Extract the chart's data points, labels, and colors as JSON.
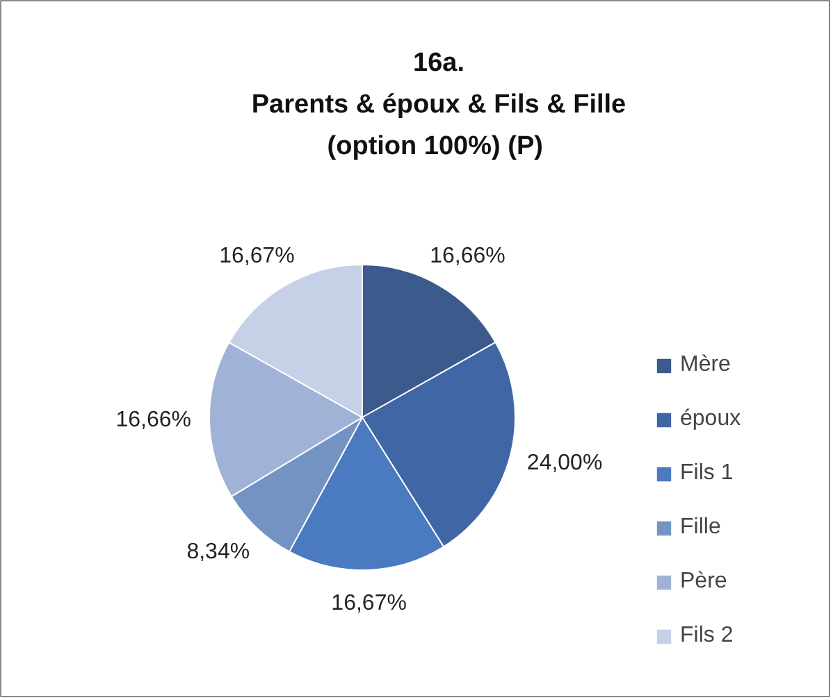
{
  "chart_data": {
    "type": "pie",
    "title": "16a.\nParents & époux & Fils & Fille\n(option  100%) (P)",
    "categories": [
      "Mère",
      "époux",
      "Fils 1",
      "Fille",
      "Père",
      "Fils 2"
    ],
    "values": [
      16.66,
      24.0,
      16.67,
      8.34,
      16.66,
      16.67
    ],
    "value_labels": [
      "16,66%",
      "24,00%",
      "16,67%",
      "8,34%",
      "16,66%",
      "16,67%"
    ],
    "colors": [
      "#3c5a8c",
      "#4066a6",
      "#4a7ac0",
      "#7393c2",
      "#a0b2d6",
      "#c6d0e6"
    ],
    "legend": "right"
  }
}
